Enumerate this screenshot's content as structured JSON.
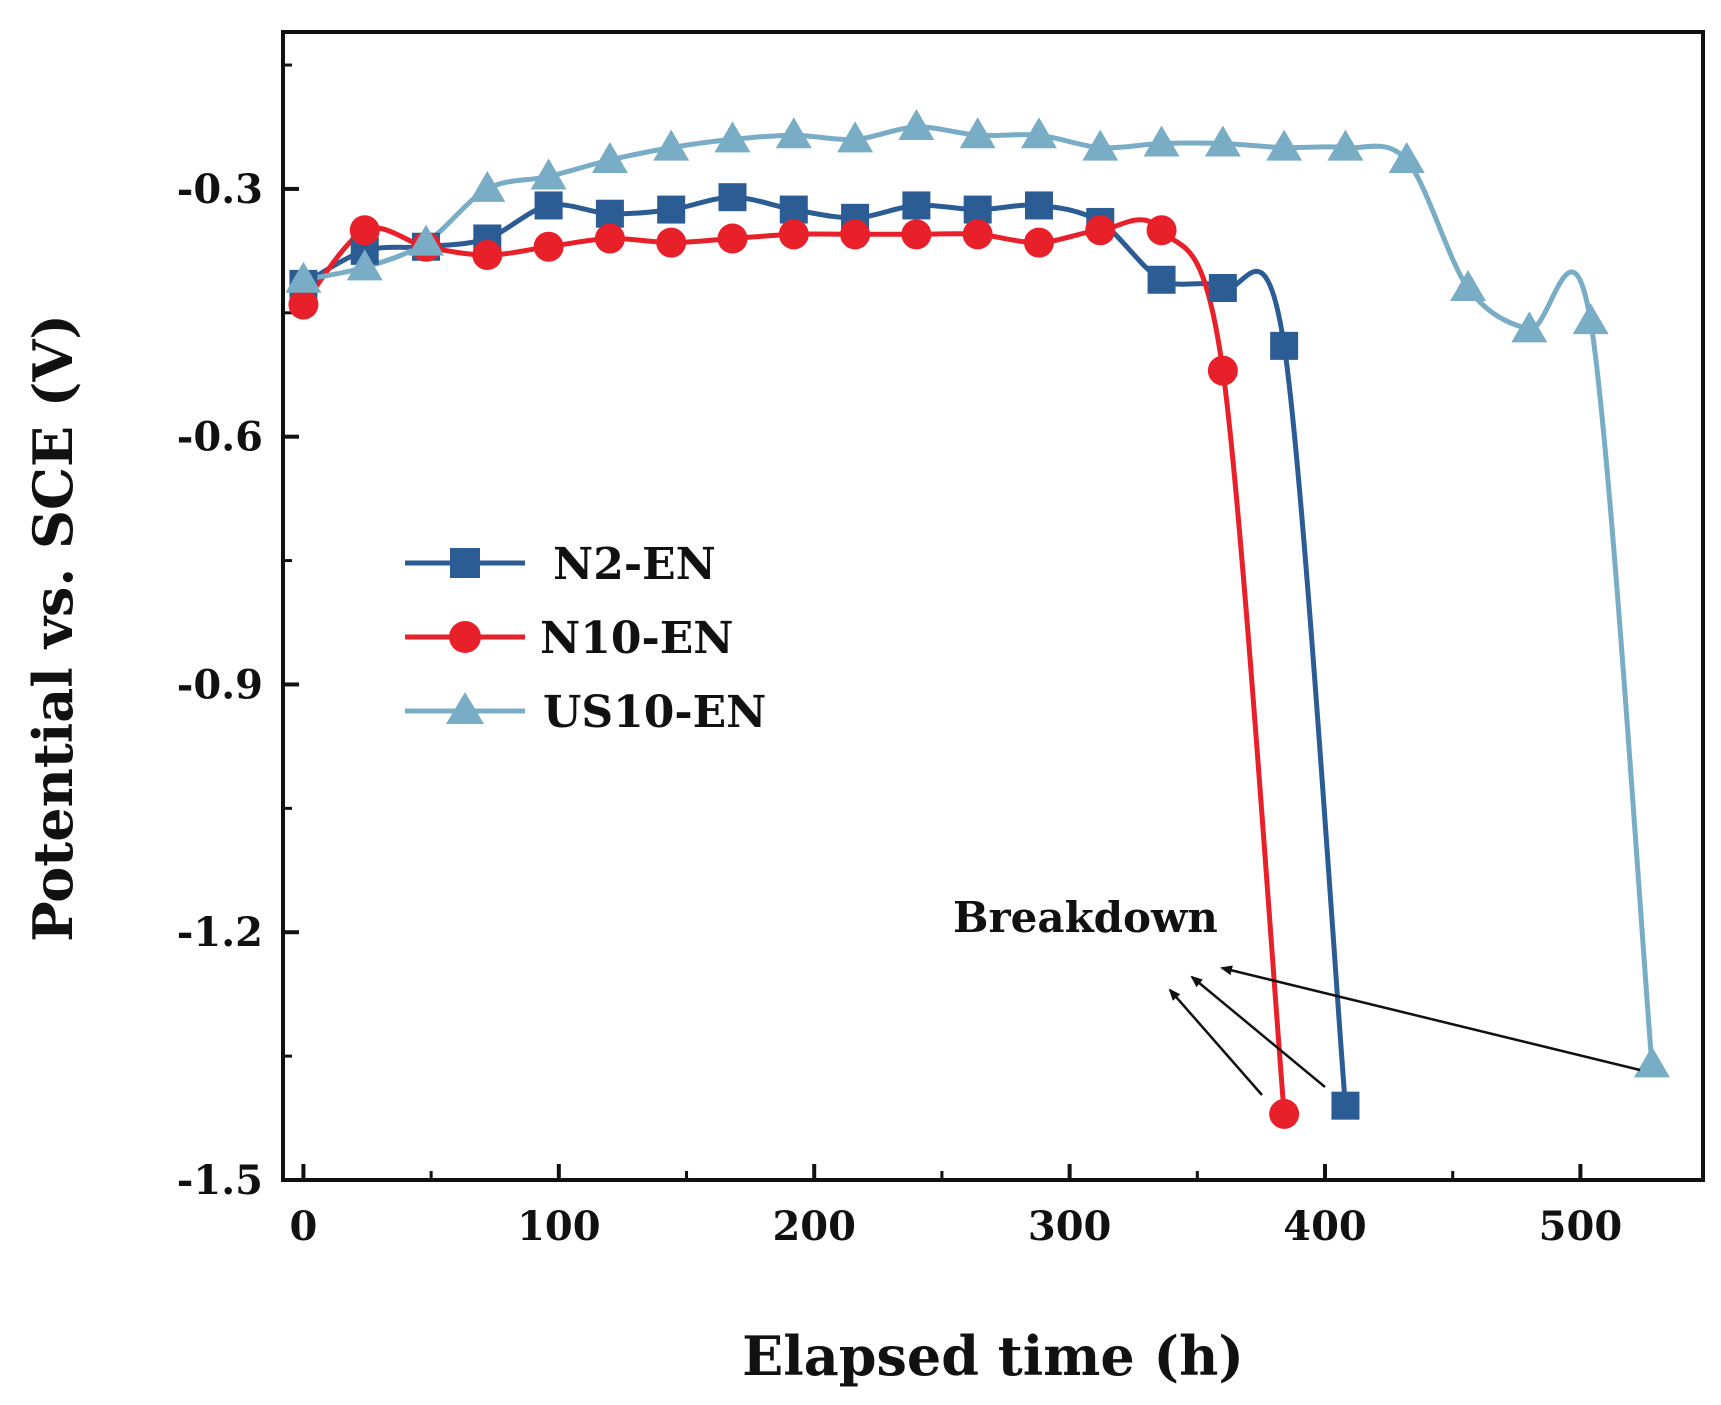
{
  "chart_data": {
    "type": "line",
    "xlabel": "Elapsed time (h)",
    "ylabel": "Potential vs. SCE (V)",
    "xlim": [
      -8,
      548
    ],
    "ylim": [
      -1.5,
      -0.11
    ],
    "x_ticks": [
      0,
      100,
      200,
      300,
      400,
      500
    ],
    "x_tick_labels": [
      "0",
      "100",
      "200",
      "300",
      "400",
      "500"
    ],
    "y_ticks": [
      -0.3,
      -0.6,
      -0.9,
      -1.2,
      -1.5
    ],
    "y_tick_labels": [
      "-0.3",
      "-0.6",
      "-0.9",
      "-1.2",
      "-1.5"
    ],
    "grid": false,
    "legend_position": "center-left",
    "annotation": "Breakdown",
    "series": [
      {
        "name": "N2-EN",
        "color": "#2c5c94",
        "marker": "square",
        "points": [
          [
            0,
            -0.415
          ],
          [
            24,
            -0.375
          ],
          [
            48,
            -0.37
          ],
          [
            72,
            -0.36
          ],
          [
            96,
            -0.32
          ],
          [
            120,
            -0.33
          ],
          [
            144,
            -0.325
          ],
          [
            168,
            -0.31
          ],
          [
            192,
            -0.325
          ],
          [
            216,
            -0.335
          ],
          [
            240,
            -0.32
          ],
          [
            264,
            -0.325
          ],
          [
            288,
            -0.32
          ],
          [
            312,
            -0.34
          ],
          [
            336,
            -0.41
          ],
          [
            360,
            -0.42
          ],
          [
            384,
            -0.49
          ],
          [
            408,
            -1.41
          ]
        ]
      },
      {
        "name": "N10-EN",
        "color": "#e8202a",
        "marker": "circle",
        "points": [
          [
            0,
            -0.44
          ],
          [
            24,
            -0.35
          ],
          [
            48,
            -0.37
          ],
          [
            72,
            -0.38
          ],
          [
            96,
            -0.37
          ],
          [
            120,
            -0.36
          ],
          [
            144,
            -0.365
          ],
          [
            168,
            -0.36
          ],
          [
            192,
            -0.355
          ],
          [
            216,
            -0.355
          ],
          [
            240,
            -0.355
          ],
          [
            264,
            -0.355
          ],
          [
            288,
            -0.365
          ],
          [
            312,
            -0.35
          ],
          [
            336,
            -0.35
          ],
          [
            360,
            -0.52
          ],
          [
            384,
            -1.42
          ]
        ]
      },
      {
        "name": "US10-EN",
        "color": "#79adc5",
        "marker": "triangle",
        "points": [
          [
            0,
            -0.41
          ],
          [
            24,
            -0.395
          ],
          [
            48,
            -0.365
          ],
          [
            72,
            -0.3
          ],
          [
            96,
            -0.285
          ],
          [
            120,
            -0.265
          ],
          [
            144,
            -0.25
          ],
          [
            168,
            -0.24
          ],
          [
            192,
            -0.235
          ],
          [
            216,
            -0.24
          ],
          [
            240,
            -0.225
          ],
          [
            264,
            -0.235
          ],
          [
            288,
            -0.235
          ],
          [
            312,
            -0.25
          ],
          [
            336,
            -0.245
          ],
          [
            360,
            -0.245
          ],
          [
            384,
            -0.25
          ],
          [
            408,
            -0.25
          ],
          [
            432,
            -0.265
          ],
          [
            456,
            -0.42
          ],
          [
            480,
            -0.47
          ],
          [
            504,
            -0.46
          ],
          [
            528,
            -1.36
          ]
        ]
      }
    ]
  }
}
